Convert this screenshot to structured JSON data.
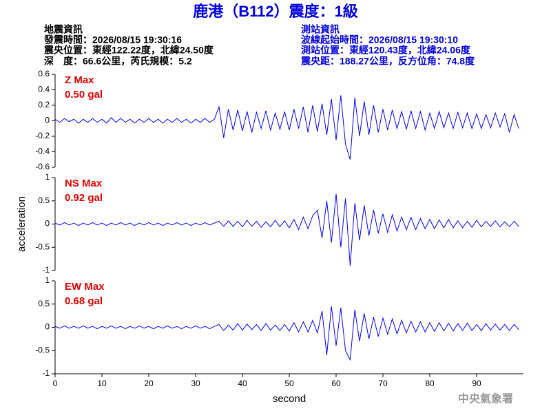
{
  "header": {
    "title": "鹿港（B112）震度：1級",
    "left": [
      "地震資訊",
      "發震時間：2026/08/15 19:30:16",
      "震央位置：東經122.22度，北緯24.50度",
      "深　度：66.6公里，芮氏規模：5.2"
    ],
    "right": [
      "測站資訊",
      "波線起始時間：2026/08/15 19:30:10",
      "測站位置：東經120.43度，北緯24.06度",
      "震央距：188.27公里，反方位角：74.8度"
    ],
    "footer": "中央氣象署"
  },
  "chart_data": [
    {
      "type": "line",
      "annotations": [
        "Z Max",
        "0.50 gal"
      ],
      "xlim": [
        0,
        100
      ],
      "ylim": [
        -0.6,
        0.6
      ],
      "yticks": [
        0.6,
        0.4,
        0.2,
        0,
        -0.2,
        -0.4,
        -0.6
      ],
      "x": [
        0,
        1,
        2,
        3,
        4,
        5,
        6,
        7,
        8,
        9,
        10,
        11,
        12,
        13,
        14,
        15,
        16,
        17,
        18,
        19,
        20,
        21,
        22,
        23,
        24,
        25,
        26,
        27,
        28,
        29,
        30,
        31,
        32,
        33,
        34,
        35,
        36,
        37,
        38,
        39,
        40,
        41,
        42,
        43,
        44,
        45,
        46,
        47,
        48,
        49,
        50,
        51,
        52,
        53,
        54,
        55,
        56,
        57,
        58,
        59,
        60,
        61,
        62,
        63,
        64,
        65,
        66,
        67,
        68,
        69,
        70,
        71,
        72,
        73,
        74,
        75,
        76,
        77,
        78,
        79,
        80,
        81,
        82,
        83,
        84,
        85,
        86,
        87,
        88,
        89,
        90,
        91,
        92,
        93,
        94,
        95,
        96,
        97,
        98,
        99
      ],
      "series": [
        {
          "color": "#0000ff",
          "values": [
            0.02,
            -0.02,
            0.03,
            -0.01,
            0.02,
            -0.03,
            0.02,
            -0.02,
            0.03,
            -0.02,
            0.02,
            -0.03,
            0.04,
            -0.02,
            0.03,
            -0.02,
            0.02,
            -0.03,
            0.02,
            -0.02,
            0.03,
            -0.02,
            0.02,
            -0.03,
            0.02,
            -0.02,
            0.03,
            -0.02,
            0.02,
            -0.03,
            0.02,
            -0.02,
            0.03,
            -0.02,
            0.02,
            0.18,
            -0.22,
            0.15,
            -0.12,
            0.14,
            -0.13,
            0.12,
            -0.15,
            0.11,
            -0.1,
            0.13,
            -0.12,
            0.1,
            -0.11,
            0.12,
            -0.12,
            0.15,
            -0.1,
            0.18,
            -0.15,
            0.2,
            -0.14,
            0.22,
            -0.18,
            0.28,
            -0.25,
            0.33,
            -0.3,
            -0.5,
            0.3,
            -0.2,
            0.25,
            -0.18,
            0.2,
            -0.15,
            0.15,
            -0.12,
            0.14,
            -0.1,
            0.12,
            -0.11,
            0.13,
            -0.1,
            0.12,
            -0.12,
            0.1,
            -0.1,
            0.12,
            -0.09,
            0.1,
            -0.1,
            0.11,
            -0.09,
            0.1,
            -0.1,
            0.09,
            -0.1,
            0.08,
            -0.09,
            0.1,
            -0.08,
            0.09,
            -0.15,
            0.08,
            -0.1
          ]
        }
      ]
    },
    {
      "type": "line",
      "annotations": [
        "NS Max",
        "0.92 gal"
      ],
      "ylabel": "acceleration",
      "xlim": [
        0,
        100
      ],
      "ylim": [
        -1,
        1
      ],
      "yticks": [
        1,
        0.5,
        0,
        -0.5,
        -1
      ],
      "x": [
        0,
        1,
        2,
        3,
        4,
        5,
        6,
        7,
        8,
        9,
        10,
        11,
        12,
        13,
        14,
        15,
        16,
        17,
        18,
        19,
        20,
        21,
        22,
        23,
        24,
        25,
        26,
        27,
        28,
        29,
        30,
        31,
        32,
        33,
        34,
        35,
        36,
        37,
        38,
        39,
        40,
        41,
        42,
        43,
        44,
        45,
        46,
        47,
        48,
        49,
        50,
        51,
        52,
        53,
        54,
        55,
        56,
        57,
        58,
        59,
        60,
        61,
        62,
        63,
        64,
        65,
        66,
        67,
        68,
        69,
        70,
        71,
        72,
        73,
        74,
        75,
        76,
        77,
        78,
        79,
        80,
        81,
        82,
        83,
        84,
        85,
        86,
        87,
        88,
        89,
        90,
        91,
        92,
        93,
        94,
        95,
        96,
        97,
        98,
        99
      ],
      "series": [
        {
          "color": "#0000ff",
          "values": [
            0.02,
            -0.02,
            0.03,
            -0.02,
            0.02,
            -0.03,
            0.02,
            -0.02,
            0.03,
            -0.02,
            0.02,
            -0.03,
            0.02,
            -0.02,
            0.03,
            -0.02,
            0.02,
            -0.03,
            0.02,
            -0.02,
            0.03,
            -0.02,
            0.02,
            -0.03,
            0.02,
            -0.02,
            0.03,
            -0.02,
            0.02,
            -0.03,
            0.02,
            -0.02,
            0.03,
            -0.02,
            0.02,
            0.06,
            -0.05,
            0.07,
            -0.05,
            0.06,
            -0.06,
            0.08,
            -0.05,
            0.06,
            -0.07,
            0.05,
            -0.06,
            0.08,
            -0.06,
            0.07,
            -0.08,
            0.1,
            -0.12,
            0.15,
            -0.1,
            0.18,
            0.3,
            -0.3,
            0.5,
            -0.4,
            0.65,
            -0.5,
            0.55,
            -0.9,
            0.45,
            -0.35,
            0.4,
            -0.25,
            0.3,
            -0.2,
            0.22,
            -0.18,
            0.2,
            -0.15,
            0.15,
            -0.12,
            0.14,
            -0.12,
            0.12,
            -0.1,
            0.1,
            -0.1,
            0.09,
            -0.08,
            0.1,
            -0.08,
            0.07,
            -0.08,
            0.06,
            -0.07,
            0.08,
            -0.06,
            0.06,
            -0.05,
            0.07,
            -0.06,
            0.05,
            -0.06,
            0.06,
            -0.05
          ]
        }
      ]
    },
    {
      "type": "line",
      "annotations": [
        "EW Max",
        "0.68 gal"
      ],
      "xlabel": "second",
      "xlim": [
        0,
        100
      ],
      "xticks": [
        0,
        10,
        20,
        30,
        40,
        50,
        60,
        70,
        80,
        90
      ],
      "ylim": [
        -1,
        1
      ],
      "yticks": [
        1,
        0.5,
        0,
        -0.5,
        -1
      ],
      "x": [
        0,
        1,
        2,
        3,
        4,
        5,
        6,
        7,
        8,
        9,
        10,
        11,
        12,
        13,
        14,
        15,
        16,
        17,
        18,
        19,
        20,
        21,
        22,
        23,
        24,
        25,
        26,
        27,
        28,
        29,
        30,
        31,
        32,
        33,
        34,
        35,
        36,
        37,
        38,
        39,
        40,
        41,
        42,
        43,
        44,
        45,
        46,
        47,
        48,
        49,
        50,
        51,
        52,
        53,
        54,
        55,
        56,
        57,
        58,
        59,
        60,
        61,
        62,
        63,
        64,
        65,
        66,
        67,
        68,
        69,
        70,
        71,
        72,
        73,
        74,
        75,
        76,
        77,
        78,
        79,
        80,
        81,
        82,
        83,
        84,
        85,
        86,
        87,
        88,
        89,
        90,
        91,
        92,
        93,
        94,
        95,
        96,
        97,
        98,
        99
      ],
      "series": [
        {
          "color": "#0000ff",
          "values": [
            0.02,
            -0.02,
            0.03,
            -0.02,
            0.02,
            -0.02,
            0.03,
            -0.02,
            0.02,
            -0.03,
            0.02,
            -0.02,
            0.03,
            -0.02,
            0.02,
            -0.03,
            0.02,
            -0.02,
            0.03,
            -0.02,
            0.02,
            -0.03,
            0.02,
            -0.02,
            0.03,
            -0.02,
            0.02,
            -0.03,
            0.02,
            -0.02,
            0.03,
            -0.02,
            0.02,
            -0.03,
            0.02,
            0.06,
            -0.07,
            0.05,
            -0.06,
            0.08,
            -0.06,
            0.07,
            -0.05,
            0.06,
            -0.07,
            0.08,
            -0.06,
            0.05,
            -0.07,
            0.06,
            -0.08,
            0.1,
            -0.1,
            0.12,
            -0.1,
            0.15,
            -0.12,
            0.35,
            -0.6,
            0.45,
            -0.4,
            0.42,
            -0.5,
            -0.7,
            0.38,
            -0.3,
            0.3,
            -0.25,
            0.22,
            -0.2,
            0.2,
            -0.15,
            0.18,
            -0.14,
            0.15,
            -0.12,
            0.13,
            -0.1,
            0.12,
            -0.1,
            0.1,
            -0.09,
            0.1,
            -0.08,
            0.09,
            -0.08,
            0.08,
            -0.07,
            0.09,
            -0.07,
            0.06,
            -0.07,
            0.08,
            -0.06,
            0.07,
            -0.06,
            0.06,
            -0.07,
            0.06,
            -0.05
          ]
        }
      ]
    }
  ]
}
